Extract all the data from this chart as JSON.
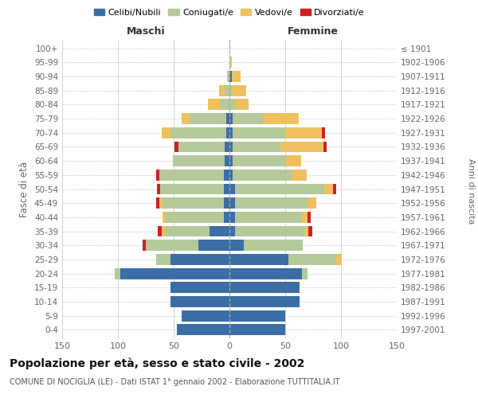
{
  "age_groups": [
    "0-4",
    "5-9",
    "10-14",
    "15-19",
    "20-24",
    "25-29",
    "30-34",
    "35-39",
    "40-44",
    "45-49",
    "50-54",
    "55-59",
    "60-64",
    "65-69",
    "70-74",
    "75-79",
    "80-84",
    "85-89",
    "90-94",
    "95-99",
    "100+"
  ],
  "birth_years": [
    "1997-2001",
    "1992-1996",
    "1987-1991",
    "1982-1986",
    "1977-1981",
    "1972-1976",
    "1967-1971",
    "1962-1966",
    "1957-1961",
    "1952-1956",
    "1947-1951",
    "1942-1946",
    "1937-1941",
    "1932-1936",
    "1927-1931",
    "1922-1926",
    "1917-1921",
    "1912-1916",
    "1907-1911",
    "1902-1906",
    "≤ 1901"
  ],
  "maschi": {
    "celibi": [
      47,
      43,
      53,
      53,
      98,
      53,
      28,
      18,
      5,
      5,
      5,
      5,
      4,
      4,
      3,
      3,
      0,
      0,
      0,
      0,
      0
    ],
    "coniugati": [
      0,
      0,
      0,
      0,
      5,
      13,
      47,
      40,
      52,
      55,
      57,
      58,
      47,
      42,
      50,
      33,
      8,
      4,
      2,
      0,
      0
    ],
    "vedovi": [
      0,
      0,
      0,
      0,
      0,
      0,
      0,
      3,
      3,
      3,
      0,
      0,
      0,
      0,
      8,
      7,
      11,
      5,
      0,
      0,
      0
    ],
    "divorziati": [
      0,
      0,
      0,
      0,
      0,
      0,
      3,
      3,
      0,
      3,
      3,
      3,
      0,
      3,
      0,
      0,
      0,
      0,
      0,
      0,
      0
    ]
  },
  "femmine": {
    "nubili": [
      50,
      50,
      63,
      63,
      65,
      53,
      13,
      5,
      5,
      5,
      5,
      3,
      3,
      3,
      3,
      3,
      0,
      0,
      2,
      0,
      0
    ],
    "coniugate": [
      0,
      0,
      0,
      0,
      5,
      43,
      53,
      63,
      60,
      65,
      80,
      53,
      48,
      43,
      47,
      27,
      5,
      2,
      0,
      0,
      0
    ],
    "vedove": [
      0,
      0,
      0,
      0,
      0,
      5,
      0,
      3,
      5,
      8,
      8,
      13,
      13,
      38,
      33,
      32,
      12,
      13,
      8,
      2,
      0
    ],
    "divorziate": [
      0,
      0,
      0,
      0,
      0,
      0,
      0,
      3,
      3,
      0,
      3,
      0,
      0,
      3,
      3,
      0,
      0,
      0,
      0,
      0,
      0
    ]
  },
  "colors": {
    "celibi": "#3a6ea5",
    "coniugati": "#b5c99a",
    "vedovi": "#f0c060",
    "divorziati": "#cc2222"
  },
  "xlim": 150,
  "title": "Popolazione per età, sesso e stato civile - 2002",
  "subtitle": "COMUNE DI NOCIGLIA (LE) - Dati ISTAT 1° gennaio 2002 - Elaborazione TUTTITALIA.IT",
  "ylabel_left": "Fasce di età",
  "ylabel_right": "Anni di nascita",
  "xlabel_left": "Maschi",
  "xlabel_right": "Femmine",
  "background_color": "#ffffff",
  "grid_color": "#cccccc"
}
